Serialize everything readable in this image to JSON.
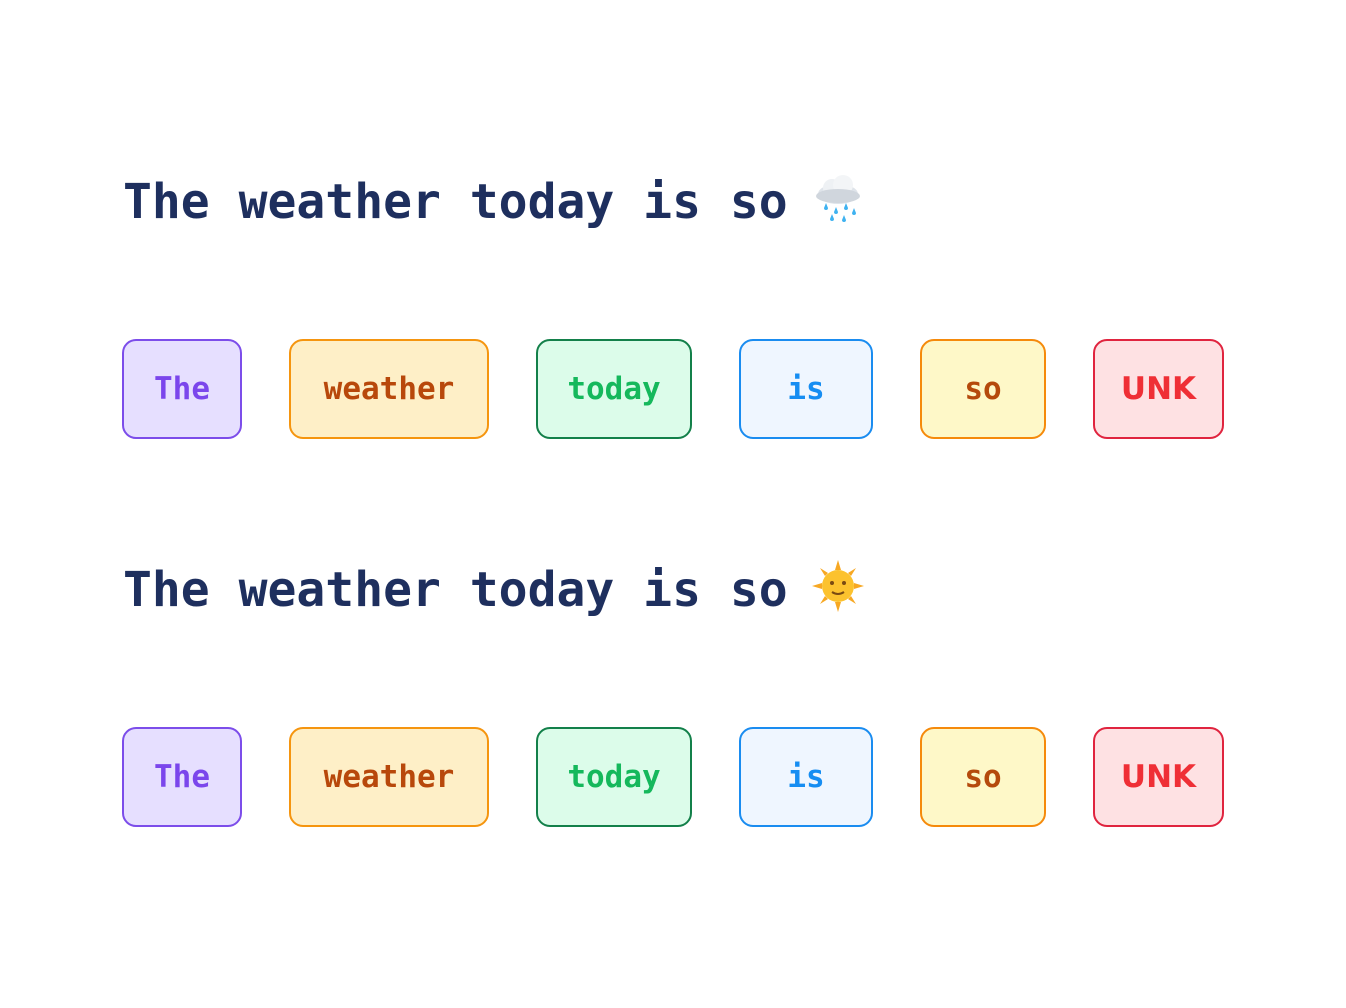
{
  "rows": [
    {
      "sentence": "The weather today is so",
      "emoji": "cloud-with-rain-icon",
      "tokens": [
        "The",
        "weather",
        "today",
        "is",
        "so",
        "UNK"
      ]
    },
    {
      "sentence": "The weather today is so",
      "emoji": "sun-with-face-icon",
      "tokens": [
        "The",
        "weather",
        "today",
        "is",
        "so",
        "UNK"
      ]
    }
  ],
  "token_colors": [
    {
      "border": "#7c4dea",
      "fill": "#e6dfff",
      "text": "#7b46ec"
    },
    {
      "border": "#f5950f",
      "fill": "#feefc7",
      "text": "#b8480b"
    },
    {
      "border": "#13804a",
      "fill": "#dcfcea",
      "text": "#15b85c"
    },
    {
      "border": "#1a8cf0",
      "fill": "#eff6ff",
      "text": "#168df2"
    },
    {
      "border": "#f58a0b",
      "fill": "#fef8c8",
      "text": "#b54a0c"
    },
    {
      "border": "#e0243f",
      "fill": "#fee1e3",
      "text": "#ef2f36"
    }
  ]
}
